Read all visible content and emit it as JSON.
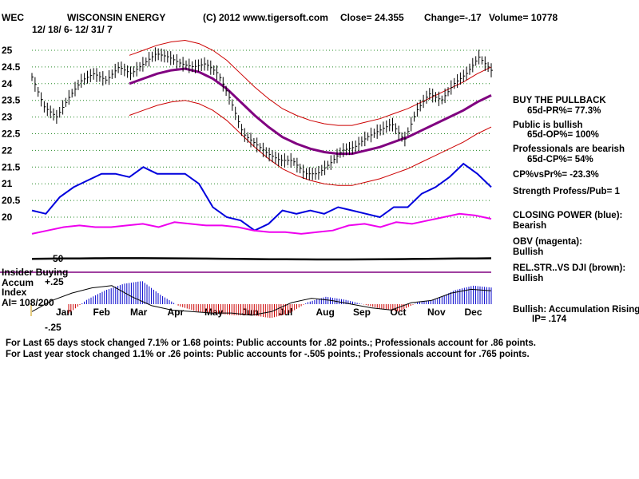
{
  "chart_data": {
    "type": "line",
    "ticker": "WEC",
    "company": "WISCONSIN ENERGY",
    "copyright": "(C) 2012 www.tigersoft.com",
    "close_label": "Close=  24.355",
    "change_label": "Change=-.17",
    "volume_label": "Volume= 10778",
    "date_range": "12/ 18/ 6- 12/ 31/ 7",
    "y_ticks": [
      "25",
      "24.5",
      "24",
      "23.5",
      "23",
      "22.5",
      "22",
      "21.5",
      "21",
      "20.5",
      "20"
    ],
    "x_ticks": [
      "Jan",
      "Feb",
      "Mar",
      "Apr",
      "May",
      "Jun",
      "Jul",
      "Aug",
      "Sep",
      "Oct",
      "Nov",
      "Dec"
    ],
    "ylim": [
      19.75,
      25.25
    ],
    "series": [
      {
        "name": "Close",
        "values": [
          24.2,
          23.3,
          23.0,
          23.6,
          24.1,
          24.3,
          24.1,
          24.5,
          24.3,
          24.6,
          24.9,
          24.8,
          24.6,
          24.5,
          24.6,
          24.3,
          23.5,
          22.5,
          22.2,
          21.9,
          21.7,
          21.7,
          21.3,
          21.3,
          21.6,
          22.0,
          22.1,
          22.4,
          22.6,
          22.8,
          22.3,
          23.2,
          23.7,
          23.5,
          24.0,
          24.3,
          24.8,
          24.4
        ]
      },
      {
        "name": "Moving Average",
        "values": [
          null,
          null,
          null,
          null,
          null,
          null,
          null,
          24.0,
          24.15,
          24.3,
          24.4,
          24.45,
          24.35,
          24.15,
          23.85,
          23.45,
          23.05,
          22.7,
          22.4,
          22.2,
          22.05,
          21.95,
          21.9,
          21.9,
          22.0,
          22.1,
          22.25,
          22.4,
          22.6,
          22.8,
          23.0,
          23.2,
          23.45,
          23.65
        ]
      },
      {
        "name": "Closing Power",
        "values": [
          20.2,
          20.1,
          20.6,
          20.9,
          21.1,
          21.3,
          21.3,
          21.2,
          21.5,
          21.3,
          21.3,
          21.3,
          21.0,
          20.3,
          20.0,
          19.9,
          19.6,
          19.8,
          20.2,
          20.1,
          20.2,
          20.1,
          20.3,
          20.2,
          20.1,
          20.0,
          20.3,
          20.3,
          20.7,
          20.9,
          21.2,
          21.6,
          21.3,
          20.9
        ]
      },
      {
        "name": "OBV",
        "values": [
          19.5,
          19.6,
          19.7,
          19.75,
          19.7,
          19.7,
          19.75,
          19.8,
          19.7,
          19.85,
          19.8,
          19.75,
          19.75,
          19.7,
          19.6,
          19.55,
          19.55,
          19.5,
          19.55,
          19.6,
          19.75,
          19.8,
          19.7,
          19.85,
          19.8,
          19.9,
          20.0,
          20.1,
          20.05,
          19.95
        ]
      },
      {
        "name": "Accumulation Index",
        "values": [
          -0.1,
          0.05,
          0.15,
          0.22,
          0.25,
          0.1,
          -0.02,
          -0.08,
          -0.1,
          -0.12,
          -0.12,
          -0.15,
          -0.1,
          0.02,
          0.08,
          0.05,
          0.0,
          -0.05,
          -0.08,
          0.02,
          0.05,
          0.15,
          0.2,
          0.18
        ]
      }
    ],
    "insider_label": "Insider Buying",
    "acc_labels": [
      "Accum",
      "Index",
      "AI= 108/200"
    ],
    "acc_ticks": [
      "+.25",
      "-.25"
    ],
    "level_50": "50"
  },
  "sidebar": [
    "BUY THE PULLBACK",
    "65d-PR%= 77.3%",
    "Public is bullish",
    "65d-OP%= 100%",
    "Professionals are bearish",
    "65d-CP%= 54%",
    "CP%vsPr%= -23.3%",
    "Strength Profess/Pub= 1",
    "CLOSING POWER (blue):",
    "Bearish",
    "OBV (magenta):",
    "Bullish",
    "REL.STR..VS DJI (brown):",
    "Bullish",
    "Bullish: Accumulation Rising",
    "IP=  .174"
  ],
  "footer": [
    "For Last 65 days stock changed  7.1% or  1.68 points:  Public accounts for  .82 points.;  Professionals account for  .86 points.",
    "For Last year stock changed  1.1% or  .26 points:  Public accounts for -.505 points.;  Professionals account for  .765 points."
  ],
  "colors": {
    "price": "#000000",
    "bands": "#cc0000",
    "ma": "#800080",
    "closing_power": "#0000dd",
    "obv": "#ee00ee",
    "rel_strength": "#000000",
    "acc_pos": "#0000cc",
    "acc_neg": "#cc0000",
    "insider": "#800080",
    "grid": "#228822"
  }
}
